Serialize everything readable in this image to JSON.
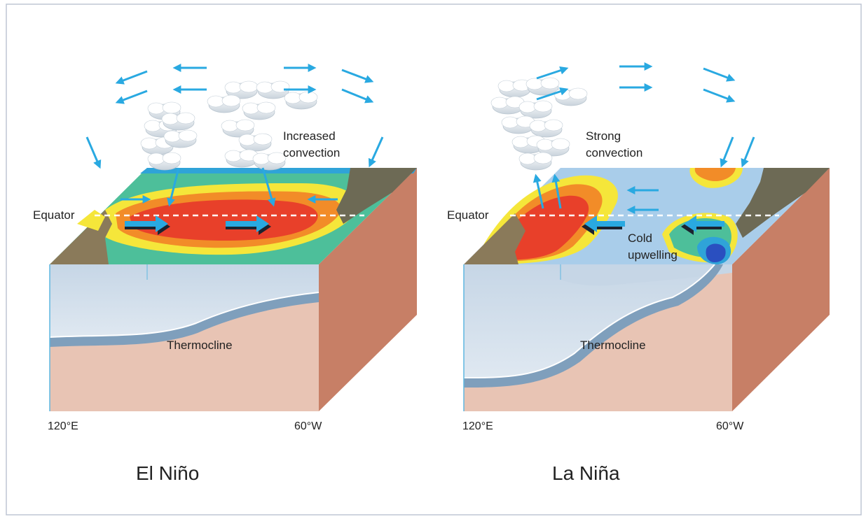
{
  "colors": {
    "wind_arrow": "#29a9e1",
    "ocean_surface": "#a9cdea",
    "warm_core": "#e8402a",
    "warm_mid": "#f28c28",
    "warm_outer": "#f5e63a",
    "cool_band": "#4dbf9a",
    "cold_deep": "#2a4fc0",
    "deep_water": "#e8c4b4",
    "side_face": "#c77f66",
    "thermocline_band": "#7f9fbc"
  },
  "el_nino": {
    "title": "El Niño",
    "convection_label_line1": "Increased",
    "convection_label_line2": "convection",
    "equator_label": "Equator",
    "thermocline_label": "Thermocline",
    "lon_west": "120°E",
    "lon_east": "60°W",
    "icons": [
      "cloud-icon",
      "wind-arrow-icon",
      "current-arrow-icon"
    ]
  },
  "la_nina": {
    "title": "La Niña",
    "convection_label_line1": "Strong",
    "convection_label_line2": "convection",
    "upwelling_label_line1": "Cold",
    "upwelling_label_line2": "upwelling",
    "equator_label": "Equator",
    "thermocline_label": "Thermocline",
    "lon_west": "120°E",
    "lon_east": "60°W",
    "icons": [
      "cloud-icon",
      "wind-arrow-icon",
      "current-arrow-icon"
    ]
  }
}
